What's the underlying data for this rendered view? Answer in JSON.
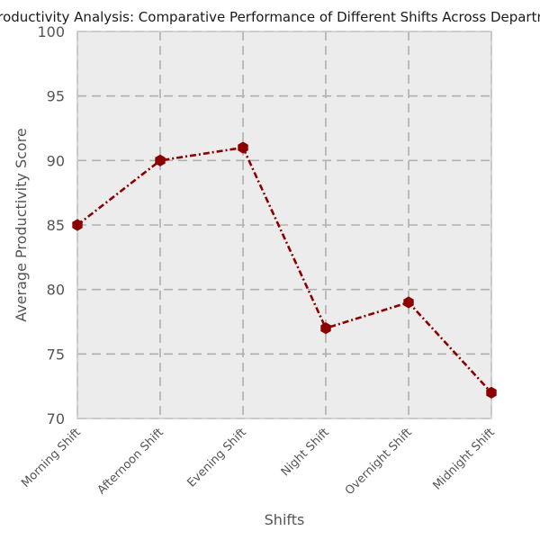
{
  "chart_data": {
    "type": "line",
    "title": "Productivity Analysis: Comparative Performance of Different Shifts Across Departments",
    "xlabel": "Shifts",
    "ylabel": "Average Productivity Score",
    "categories": [
      "Morning Shift",
      "Afternoon Shift",
      "Evening Shift",
      "Night Shift",
      "Overnight Shift",
      "Midnight Shift"
    ],
    "series": [
      {
        "values": [
          85,
          90,
          91,
          77,
          79,
          72
        ]
      }
    ],
    "ylim": [
      70,
      100
    ],
    "yticks": [
      70,
      75,
      80,
      85,
      90,
      95,
      100
    ],
    "grid": true,
    "legend": "none",
    "colors": {
      "line": "#8b0000",
      "plot_background": "#ececec",
      "grid": "#b0b0b0",
      "frame": "#c8c8c8"
    }
  }
}
